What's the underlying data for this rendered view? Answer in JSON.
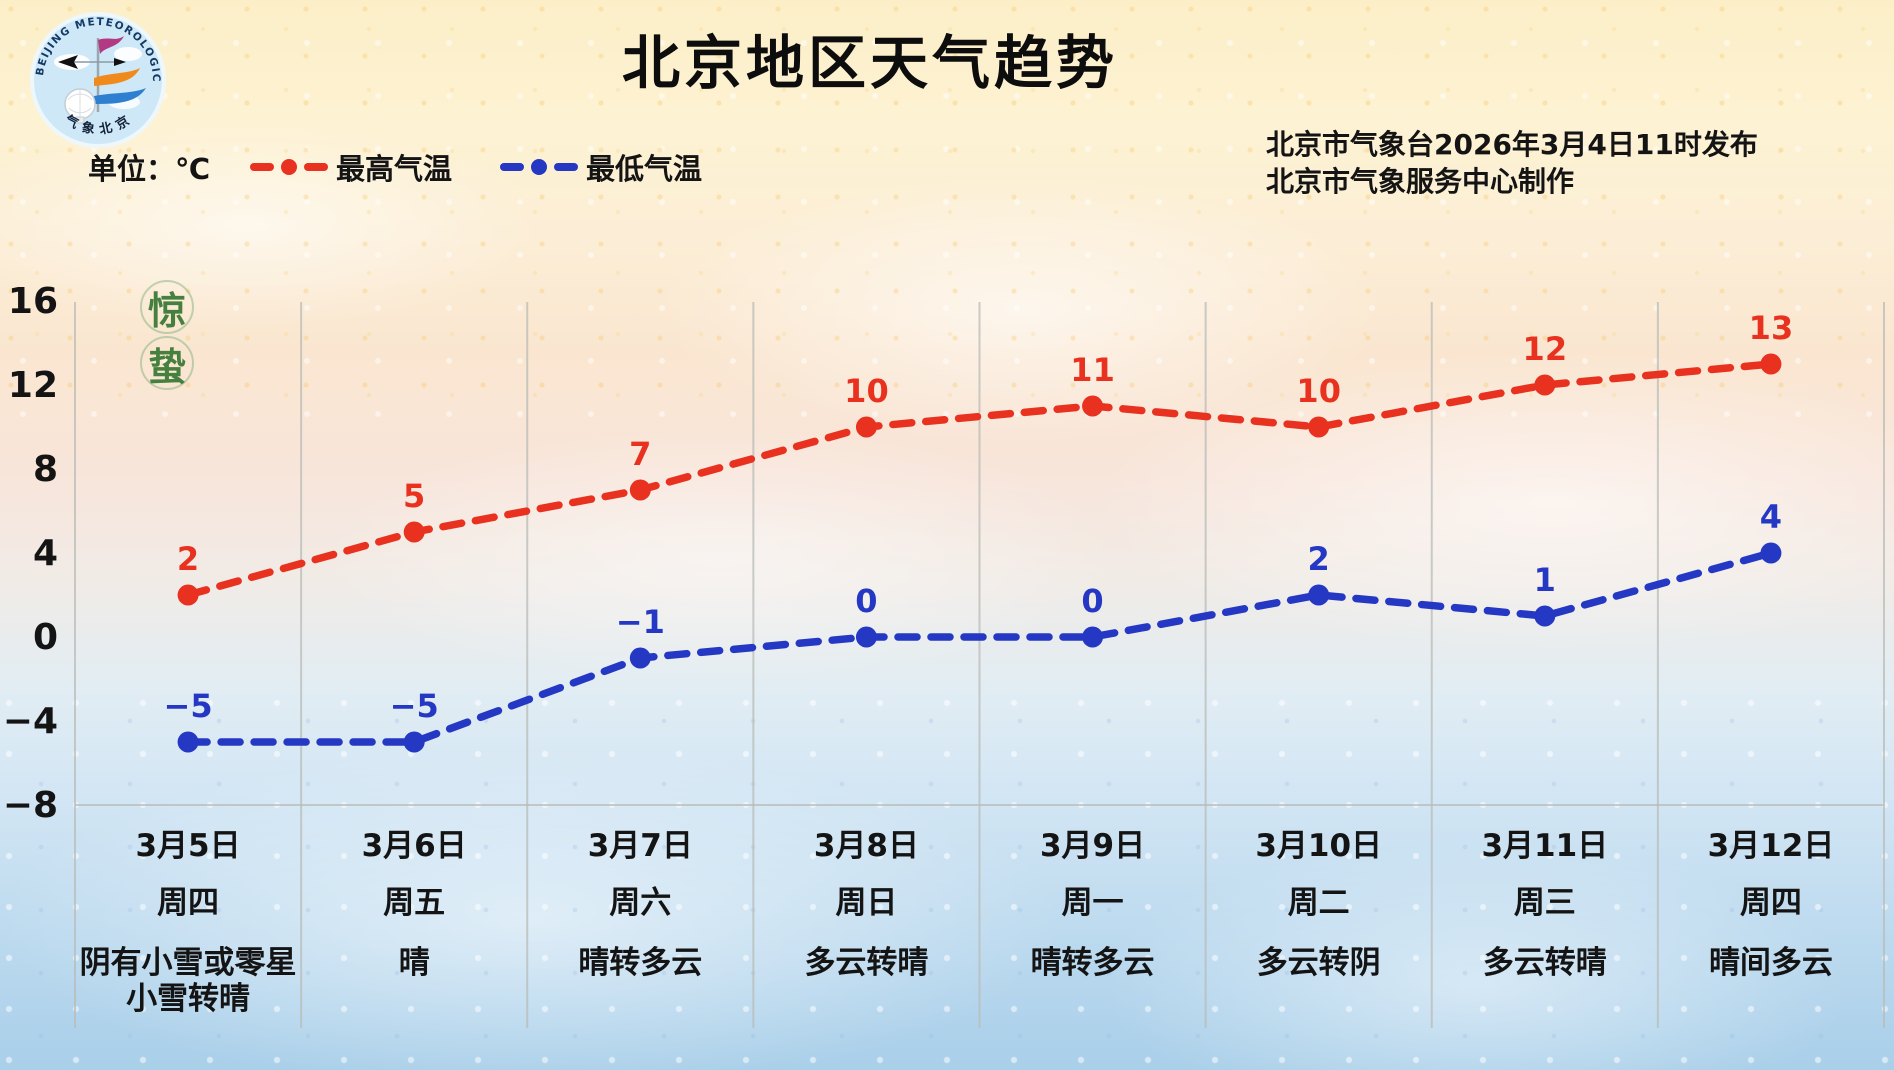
{
  "header": {
    "title": "北京地区天气趋势",
    "unit_label": "单位：℃",
    "legend": [
      {
        "label": "最高气温",
        "color": "#e8321f"
      },
      {
        "label": "最低气温",
        "color": "#2438c4"
      }
    ],
    "issue_line1": "北京市气象台2026年3月4日11时发布",
    "issue_line2": "北京市气象服务中心制作"
  },
  "logo": {
    "ring_text": "BEIJING METEOROLOGICAL SERVICE",
    "bottom_text": "气象北京"
  },
  "solar_term": {
    "char1": "惊",
    "char2": "蛰",
    "color": "#46803f"
  },
  "chart_data": {
    "type": "line",
    "title": "北京地区天气趋势",
    "ylabel_unit": "℃",
    "categories": [
      "3月5日",
      "3月6日",
      "3月7日",
      "3月8日",
      "3月9日",
      "3月10日",
      "3月11日",
      "3月12日"
    ],
    "weekdays": [
      "周四",
      "周五",
      "周六",
      "周日",
      "周一",
      "周二",
      "周三",
      "周四"
    ],
    "weather": [
      "阴有小雪或零星\n小雪转晴",
      "晴",
      "晴转多云",
      "多云转晴",
      "晴转多云",
      "多云转阴",
      "多云转晴",
      "晴间多云"
    ],
    "series": [
      {
        "name": "最高气温",
        "color": "#e8321f",
        "values": [
          2,
          5,
          7,
          10,
          11,
          10,
          12,
          13
        ]
      },
      {
        "name": "最低气温",
        "color": "#2438c4",
        "values": [
          -5,
          -5,
          -1,
          0,
          0,
          2,
          1,
          4
        ]
      }
    ],
    "yticks": [
      16,
      12,
      8,
      4,
      0,
      -4,
      -8
    ],
    "ylim": [
      -8,
      16
    ],
    "grid": "vertical-only",
    "legend_position": "top-left",
    "line_style": "dashed-with-dots",
    "gridline_color": "#b9bcb8",
    "text_color": "#141414"
  }
}
